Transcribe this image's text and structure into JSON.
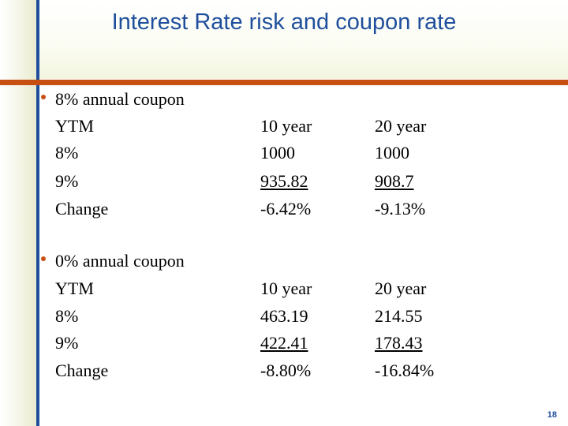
{
  "title": "Interest Rate risk and coupon rate",
  "page_number": "18",
  "blocks": [
    {
      "heading": "8% annual coupon",
      "rows": [
        {
          "label": "YTM",
          "col1": "10 year",
          "col2": "20 year"
        },
        {
          "label": "8%",
          "col1": "1000",
          "col2": "1000"
        },
        {
          "label": "9%",
          "col1": "935.82",
          "col2": "908.7"
        },
        {
          "label": "Change",
          "col1": "-6.42%",
          "col2": "-9.13%"
        }
      ]
    },
    {
      "heading": "0% annual coupon",
      "rows": [
        {
          "label": "YTM",
          "col1": "10 year",
          "col2": "20 year"
        },
        {
          "label": "8%",
          "col1": "463.19",
          "col2": "214.55"
        },
        {
          "label": "9%",
          "col1": "422.41",
          "col2": "178.43"
        },
        {
          "label": "Change",
          "col1": "-8.80%",
          "col2": "-16.84%"
        }
      ]
    }
  ],
  "colors": {
    "title_blue": "#1f4f9c",
    "accent_orange": "#c84f12"
  }
}
